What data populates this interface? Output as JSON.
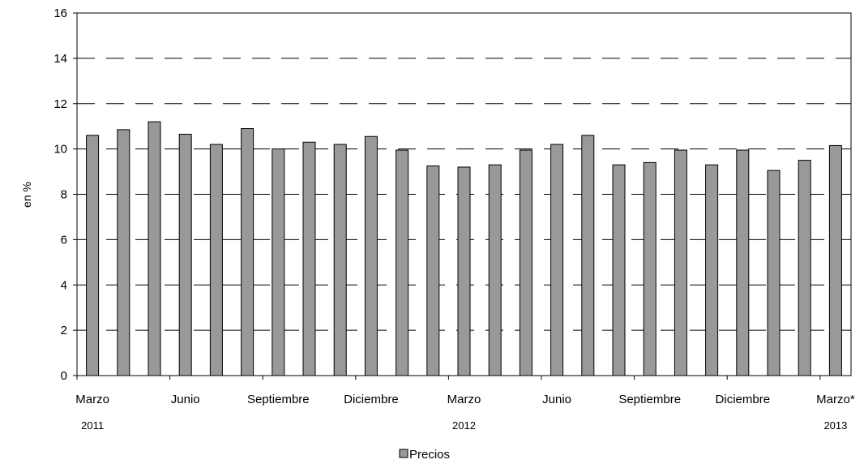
{
  "chart_data": {
    "type": "bar",
    "ylabel": "en %",
    "ylim": [
      0,
      16
    ],
    "yticks": [
      "0",
      "2",
      "4",
      "6",
      "8",
      "10",
      "12",
      "14",
      "16"
    ],
    "grid": "horizontal dashed",
    "legend_placement": "bottom-center",
    "bar_color": "#999999",
    "x_month_labels": [
      "Marzo",
      "Junio",
      "Septiembre",
      "Diciembre",
      "Marzo",
      "Junio",
      "Septiembre",
      "Diciembre",
      "Marzo*"
    ],
    "x_year_labels": [
      "2011",
      "2012",
      "2013"
    ],
    "series": [
      {
        "name": "Precios",
        "values": [
          10.6,
          10.85,
          11.2,
          10.65,
          10.2,
          10.9,
          10.0,
          10.3,
          10.2,
          10.55,
          9.95,
          9.25,
          9.2,
          9.3,
          9.95,
          10.2,
          10.6,
          9.3,
          9.4,
          9.95,
          9.3,
          9.95,
          9.05,
          9.5,
          10.15
        ]
      }
    ]
  }
}
